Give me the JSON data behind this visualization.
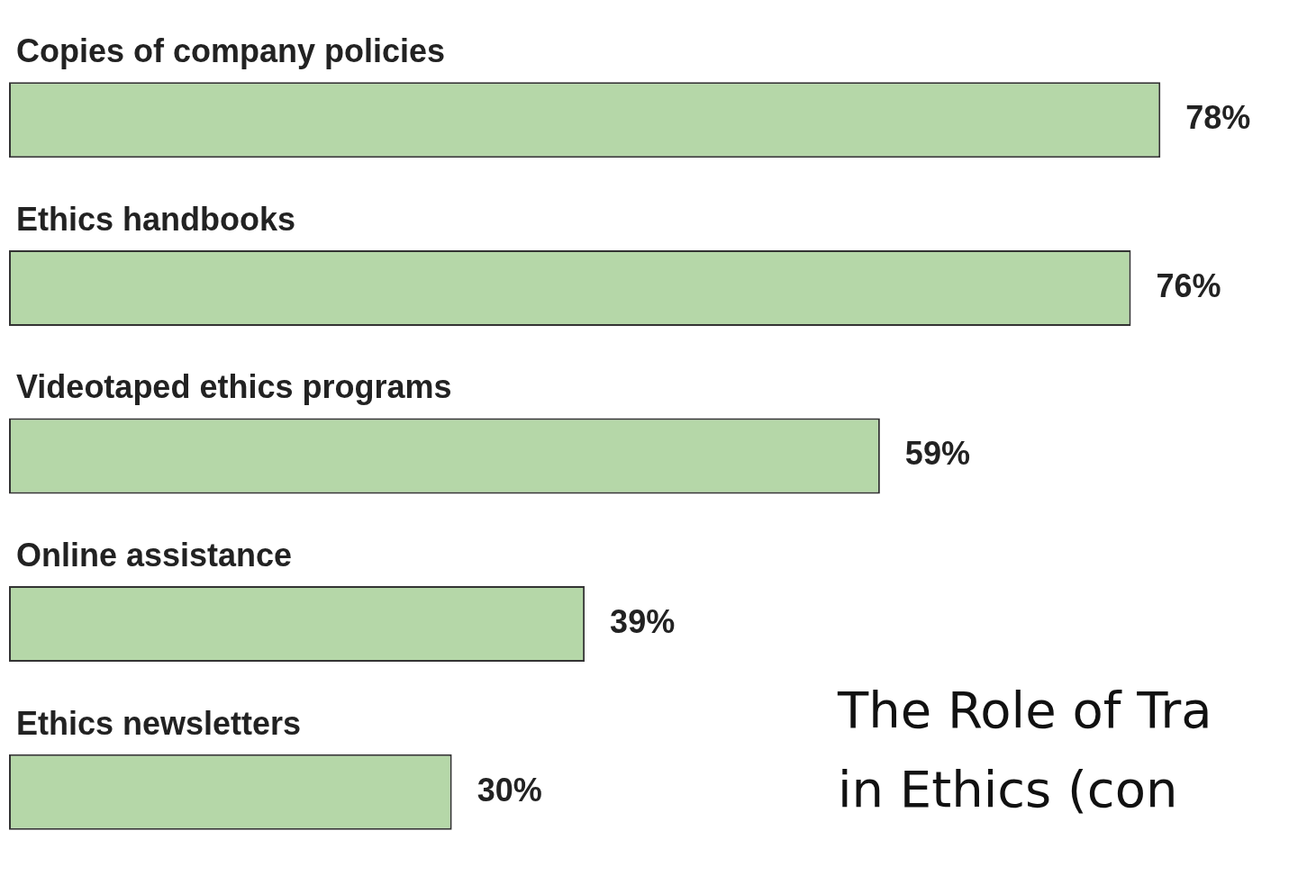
{
  "chart_data": {
    "type": "bar",
    "orientation": "horizontal",
    "categories": [
      "Copies of company policies",
      "Ethics handbooks",
      "Videotaped ethics programs",
      "Online assistance",
      "Ethics newsletters"
    ],
    "values": [
      78,
      76,
      59,
      39,
      30
    ],
    "color": "#b5d7a8",
    "data_labels": true,
    "value_labels": [
      "78%",
      "76%",
      "59%",
      "39%",
      "30%"
    ],
    "annotations": [
      "The Role of Tra",
      "in Ethics (con"
    ]
  }
}
